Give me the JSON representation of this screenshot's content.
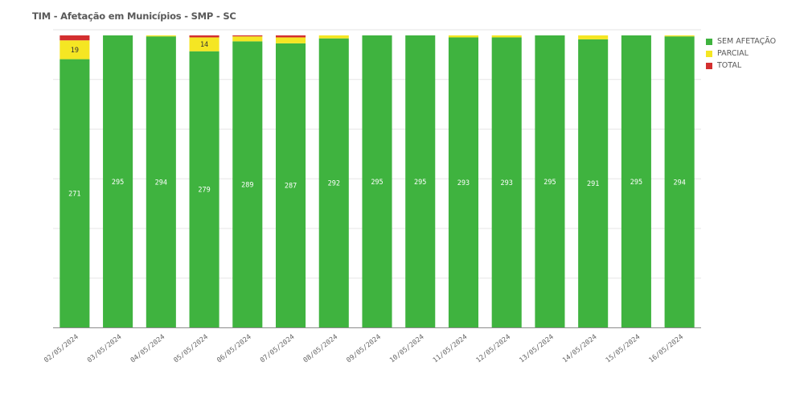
{
  "chart_data": {
    "type": "bar",
    "stacked": true,
    "title": "TIM - Afetação em Municípios - SMP - SC",
    "categories": [
      "02/05/2024",
      "03/05/2024",
      "04/05/2024",
      "05/05/2024",
      "06/05/2024",
      "07/05/2024",
      "08/05/2024",
      "09/05/2024",
      "10/05/2024",
      "11/05/2024",
      "12/05/2024",
      "13/05/2024",
      "14/05/2024",
      "15/05/2024",
      "16/05/2024"
    ],
    "series": [
      {
        "name": "SEM AFETAÇÃO",
        "color": "#3fb33f",
        "values": [
          271,
          295,
          294,
          279,
          289,
          287,
          292,
          295,
          295,
          293,
          293,
          295,
          291,
          295,
          294
        ]
      },
      {
        "name": "PARCIAL",
        "color": "#f5e623",
        "values": [
          19,
          0,
          1,
          14,
          5,
          6,
          3,
          0,
          0,
          2,
          2,
          0,
          4,
          0,
          1
        ]
      },
      {
        "name": "TOTAL",
        "color": "#d32f2f",
        "values": [
          5,
          0,
          0,
          2,
          1,
          2,
          0,
          0,
          0,
          0,
          0,
          0,
          0,
          0,
          0
        ]
      }
    ],
    "labeled_values": {
      "SEM AFETAÇÃO": [
        "271",
        "295",
        "294",
        "279",
        "289",
        "287",
        "292",
        "295",
        "295",
        "293",
        "293",
        "295",
        "291",
        "295",
        "294"
      ],
      "PARCIAL": [
        "19",
        "",
        "",
        "14",
        "",
        "",
        "",
        "",
        "",
        "",
        "",
        "",
        "",
        "",
        ""
      ]
    },
    "ylim": [
      0,
      295
    ],
    "grid": true,
    "legend_position": "right"
  }
}
